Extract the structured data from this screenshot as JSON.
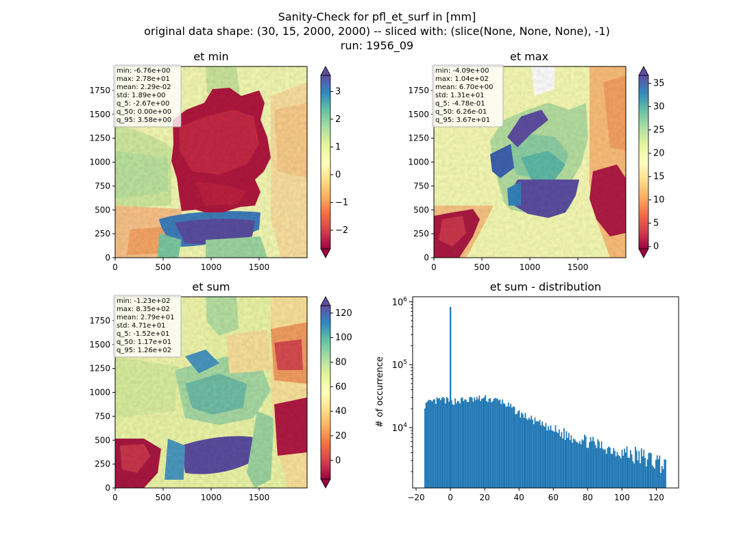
{
  "figure": {
    "title_lines": [
      "Sanity-Check for pfl_et_surf in [mm]",
      "original data shape: (30, 15, 2000, 2000) -- sliced with: (slice(None, None, None), -1)",
      "run: 1956_09"
    ]
  },
  "chart_data": [
    {
      "type": "heatmap",
      "title": "et min",
      "xlim": [
        0,
        2000
      ],
      "ylim": [
        0,
        2000
      ],
      "x_ticks": [
        "0",
        "500",
        "1000",
        "1500"
      ],
      "y_ticks": [
        "0",
        "250",
        "500",
        "750",
        "1000",
        "1250",
        "1500",
        "1750"
      ],
      "colormap": "Spectral",
      "color_range": [
        -2.67,
        3.58
      ],
      "colorbar_ticks": [
        "−2",
        "−1",
        "0",
        "1",
        "2",
        "3"
      ],
      "stats": [
        "min: -6.76e+00",
        "max: 2.78e+01",
        "mean: 2.29e-02",
        "std: 1.89e+00",
        "q_5: -2.67e+00",
        "q_50: 0.00e+00",
        "q_95: 3.58e+00"
      ]
    },
    {
      "type": "heatmap",
      "title": "et max",
      "xlim": [
        0,
        2000
      ],
      "ylim": [
        0,
        2000
      ],
      "x_ticks": [
        "0",
        "500",
        "1000",
        "1500"
      ],
      "y_ticks": [
        "0",
        "250",
        "500",
        "750",
        "1000",
        "1250",
        "1500",
        "1750"
      ],
      "colormap": "Spectral",
      "color_range": [
        -0.478,
        36.7
      ],
      "colorbar_ticks": [
        "0",
        "5",
        "10",
        "15",
        "20",
        "25",
        "30",
        "35"
      ],
      "stats": [
        "min: -4.09e+00",
        "max: 1.04e+02",
        "mean: 6.70e+00",
        "std: 1.31e+01",
        "q_5: -4.78e-01",
        "q_50: 6.26e-01",
        "q_95: 3.67e+01"
      ]
    },
    {
      "type": "heatmap",
      "title": "et sum",
      "xlim": [
        0,
        2000
      ],
      "ylim": [
        0,
        2000
      ],
      "x_ticks": [
        "0",
        "500",
        "1000",
        "1500"
      ],
      "y_ticks": [
        "0",
        "250",
        "500",
        "750",
        "1000",
        "1250",
        "1500",
        "1750"
      ],
      "colormap": "Spectral",
      "color_range": [
        -15.2,
        126
      ],
      "colorbar_ticks": [
        "0",
        "20",
        "40",
        "60",
        "80",
        "100",
        "120"
      ],
      "stats": [
        "min: -1.23e+02",
        "max: 8.35e+02",
        "mean: 2.79e+01",
        "std: 4.71e+01",
        "q_5: -1.52e+01",
        "q_50: 1.17e+01",
        "q_95: 1.26e+02"
      ]
    },
    {
      "type": "bar",
      "title": "et sum - distribution",
      "ylabel": "# of occurrence",
      "xlim": [
        -22,
        133
      ],
      "ylim": [
        1100,
        1200000
      ],
      "yscale": "log",
      "x_ticks": [
        "−20",
        "0",
        "20",
        "40",
        "60",
        "80",
        "100",
        "120"
      ],
      "x_tick_values": [
        -20,
        0,
        20,
        40,
        60,
        80,
        100,
        120
      ],
      "y_ticks": [
        "10^4",
        "10^5",
        "10^6"
      ],
      "bar_color": "#1f77b4",
      "bin_start": -15.2,
      "bin_width": 0.705,
      "envelope": [
        [
          -15.2,
          23000
        ],
        [
          -5,
          28000
        ],
        [
          0,
          26000
        ],
        [
          20,
          29000
        ],
        [
          30,
          26000
        ],
        [
          40,
          17000
        ],
        [
          60,
          9000
        ],
        [
          80,
          6000
        ],
        [
          100,
          4000
        ],
        [
          110,
          3500
        ],
        [
          126,
          2600
        ]
      ],
      "spike": {
        "x": 0,
        "count": 830000
      }
    }
  ],
  "colors": {
    "bar": "#1f77b4"
  }
}
